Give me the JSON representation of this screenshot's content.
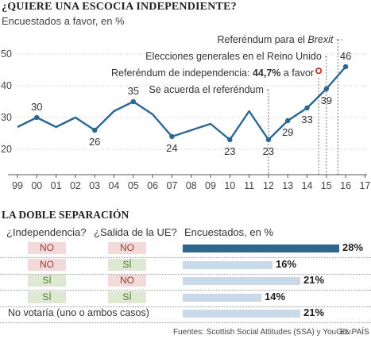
{
  "header": {
    "title": "¿QUIERE UNA ESCOCIA INDEPENDIENTE?",
    "subtitle": "Encuestados a favor, en %"
  },
  "chart_data": [
    {
      "type": "line",
      "x": [
        "99",
        "00",
        "01",
        "02",
        "03",
        "04",
        "05",
        "06",
        "07",
        "08",
        "09",
        "10",
        "11",
        "12",
        "13",
        "14",
        "15",
        "16"
      ],
      "values": [
        27,
        30,
        27,
        30,
        26,
        32,
        35,
        31,
        24,
        26,
        28,
        23,
        32,
        23,
        29,
        33,
        39,
        46
      ],
      "data_labels": [
        {
          "index": 1,
          "text": "30"
        },
        {
          "index": 4,
          "text": "26"
        },
        {
          "index": 6,
          "text": "35"
        },
        {
          "index": 8,
          "text": "24"
        },
        {
          "index": 11,
          "text": "23"
        },
        {
          "index": 13,
          "text": "23"
        },
        {
          "index": 14,
          "text": "29"
        },
        {
          "index": 15,
          "text": "33"
        },
        {
          "index": 16,
          "text": "39"
        },
        {
          "index": 17,
          "text": "46"
        }
      ],
      "x_ticks": [
        "99",
        "00",
        "01",
        "02",
        "03",
        "04",
        "05",
        "06",
        "07",
        "08",
        "09",
        "10",
        "11",
        "12",
        "13",
        "14",
        "15",
        "16",
        "17"
      ],
      "y_ticks": [
        "20",
        "30",
        "40",
        "50"
      ],
      "ylim": [
        12,
        52
      ],
      "grid": true,
      "line_color": "#2c6791",
      "highlight_point": {
        "x": 15.6,
        "y": 44.7,
        "color": "#c0392b"
      },
      "annotations": [
        {
          "id": "brexit",
          "text_prefix": "Referéndum para el ",
          "text_italic": "Brexit",
          "x": 16.6
        },
        {
          "id": "elections",
          "text": "Elecciones generales en el Reino Unido",
          "x": 16.0
        },
        {
          "id": "referendum",
          "text_prefix": "Referéndum de independencia: ",
          "text_bold": "44,7%",
          "text_suffix": " a favor",
          "x": 15.6
        },
        {
          "id": "remember",
          "text": "Se acuerda el referéndum",
          "x": 13.0
        }
      ]
    },
    {
      "type": "bar",
      "title": "LA DOBLE SEPARACIÓN",
      "column_headers": [
        "¿Independencia?",
        "¿Salida de la UE?",
        "Encuestados, en %"
      ],
      "rows": [
        {
          "independence": "NO",
          "leave_eu": "NO",
          "value": 28,
          "label": "28%",
          "highlight": true
        },
        {
          "independence": "NO",
          "leave_eu": "SÍ",
          "value": 16,
          "label": "16%",
          "highlight": false
        },
        {
          "independence": "SÍ",
          "leave_eu": "NO",
          "value": 21,
          "label": "21%",
          "highlight": false
        },
        {
          "independence": "SÍ",
          "leave_eu": "SÍ",
          "value": 14,
          "label": "14%",
          "highlight": false
        },
        {
          "row_label": "No votaría (uno o ambos casos)",
          "value": 21,
          "label": "21%",
          "highlight": false
        }
      ],
      "max": 28
    }
  ],
  "footer": {
    "source": "Fuentes: Scottish Social Attitudes (SSA) y YouGov.",
    "brand": "EL PAÍS"
  }
}
